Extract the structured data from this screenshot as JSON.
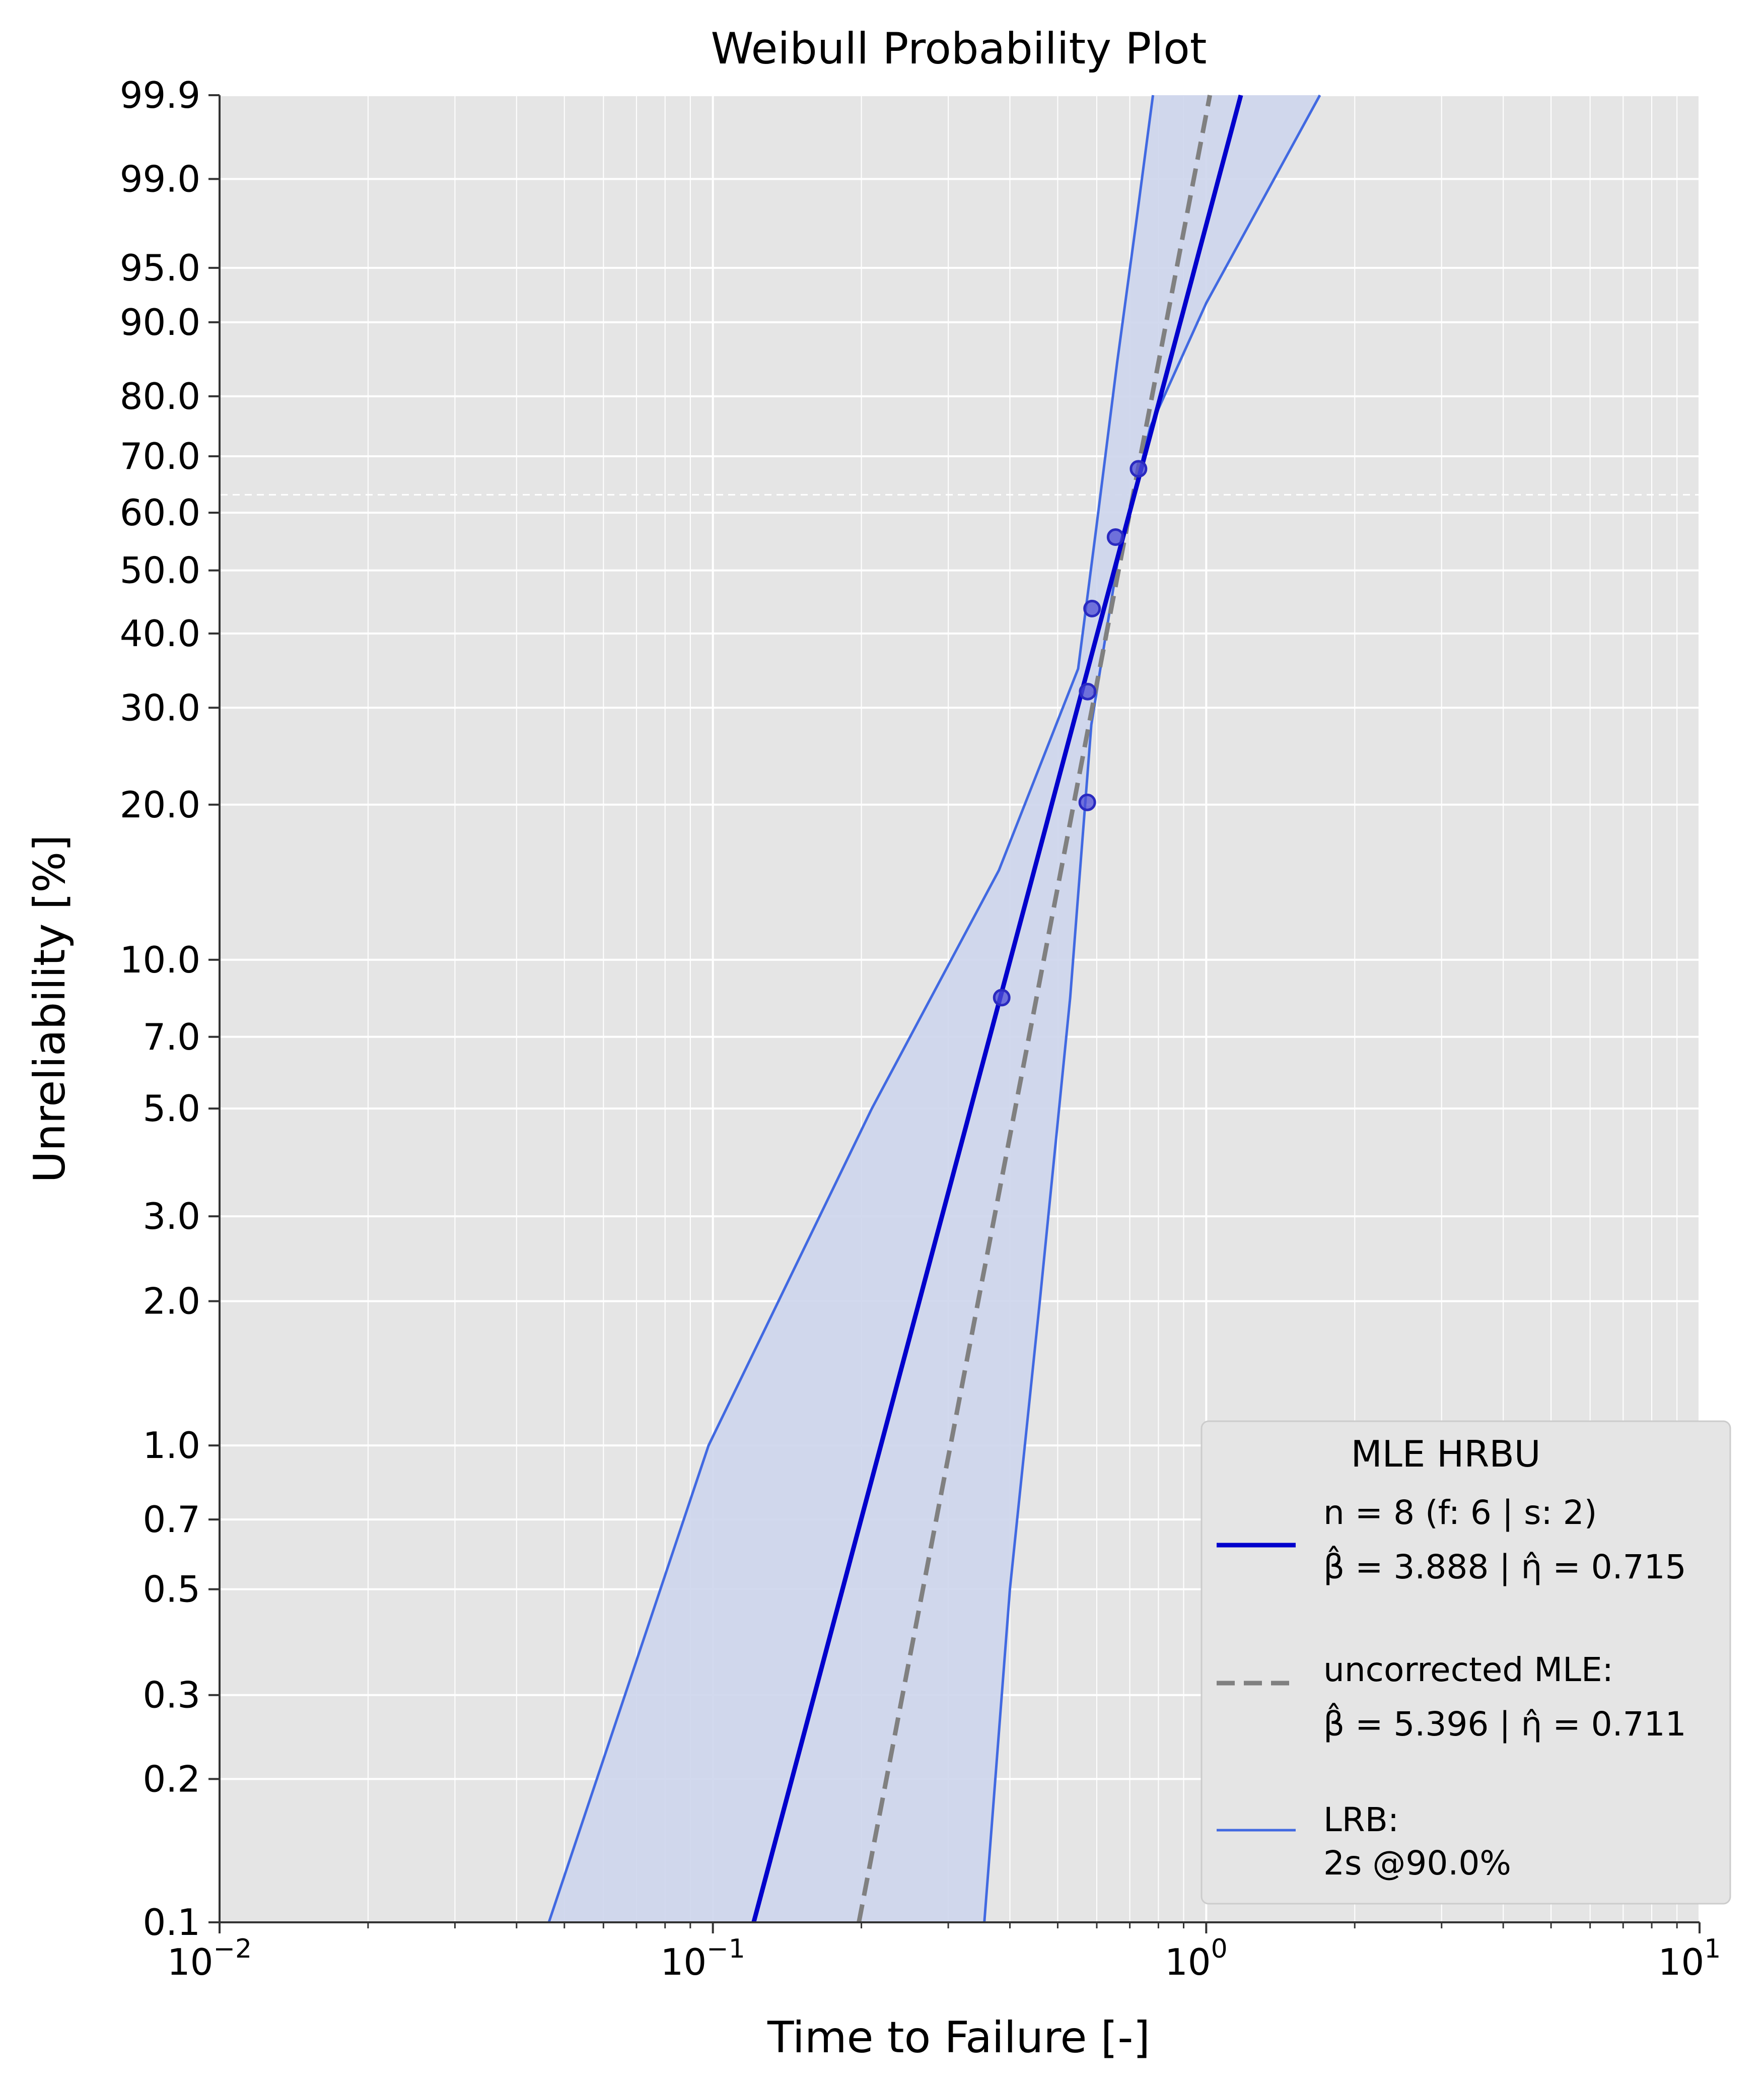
{
  "chart_data": {
    "type": "scatter",
    "title": "Weibull Probability Plot",
    "xlabel": "Time to Failure [-]",
    "ylabel": "Unreliability [%]",
    "x_scale": "log",
    "y_scale": "weibull",
    "xlim": [
      0.01,
      10
    ],
    "ylim": [
      0.1,
      99.9
    ],
    "grid": true,
    "x_major_ticks": [
      {
        "value": 0.01,
        "base": "10",
        "exp": "−2"
      },
      {
        "value": 0.1,
        "base": "10",
        "exp": "−1"
      },
      {
        "value": 1,
        "base": "10",
        "exp": "0"
      },
      {
        "value": 10,
        "base": "10",
        "exp": "1"
      }
    ],
    "y_ticks": [
      {
        "value": 0.1,
        "label": "0.1"
      },
      {
        "value": 0.2,
        "label": "0.2"
      },
      {
        "value": 0.3,
        "label": "0.3"
      },
      {
        "value": 0.5,
        "label": "0.5"
      },
      {
        "value": 0.7,
        "label": "0.7"
      },
      {
        "value": 1.0,
        "label": "1.0"
      },
      {
        "value": 2.0,
        "label": "2.0"
      },
      {
        "value": 3.0,
        "label": "3.0"
      },
      {
        "value": 5.0,
        "label": "5.0"
      },
      {
        "value": 7.0,
        "label": "7.0"
      },
      {
        "value": 10.0,
        "label": "10.0"
      },
      {
        "value": 20.0,
        "label": "20.0"
      },
      {
        "value": 30.0,
        "label": "30.0"
      },
      {
        "value": 40.0,
        "label": "40.0"
      },
      {
        "value": 50.0,
        "label": "50.0"
      },
      {
        "value": 60.0,
        "label": "60.0"
      },
      {
        "value": 70.0,
        "label": "70.0"
      },
      {
        "value": 80.0,
        "label": "80.0"
      },
      {
        "value": 90.0,
        "label": "90.0"
      },
      {
        "value": 95.0,
        "label": "95.0"
      },
      {
        "value": 99.0,
        "label": "99.0"
      },
      {
        "value": 99.9,
        "label": "99.9"
      }
    ],
    "reference_line_y": 63.2,
    "points": [
      {
        "x": 0.385,
        "y": 8.4
      },
      {
        "x": 0.574,
        "y": 20.2
      },
      {
        "x": 0.575,
        "y": 32.0
      },
      {
        "x": 0.587,
        "y": 43.8
      },
      {
        "x": 0.655,
        "y": 55.7
      },
      {
        "x": 0.729,
        "y": 67.8
      }
    ],
    "series": [
      {
        "name": "MLE HRBU",
        "beta": 3.888,
        "eta": 0.715,
        "color": "#0000cc"
      },
      {
        "name": "uncorrected MLE",
        "beta": 5.396,
        "eta": 0.711,
        "color": "#808080"
      }
    ],
    "confidence_bounds": {
      "color": "#4169e1",
      "fill": "#cdd5ec",
      "lower": [
        {
          "x": 0.355,
          "y": 0.1
        },
        {
          "x": 0.4,
          "y": 0.5
        },
        {
          "x": 0.46,
          "y": 2.0
        },
        {
          "x": 0.53,
          "y": 8.4
        },
        {
          "x": 0.585,
          "y": 28.0
        },
        {
          "x": 0.66,
          "y": 51.0
        },
        {
          "x": 0.77,
          "y": 75.0
        },
        {
          "x": 1.0,
          "y": 92.0
        },
        {
          "x": 1.7,
          "y": 99.9
        }
      ],
      "upper": [
        {
          "x": 0.0465,
          "y": 0.1
        },
        {
          "x": 0.098,
          "y": 1.0
        },
        {
          "x": 0.21,
          "y": 5.0
        },
        {
          "x": 0.38,
          "y": 15.0
        },
        {
          "x": 0.55,
          "y": 35.0
        },
        {
          "x": 0.6,
          "y": 58.0
        },
        {
          "x": 0.66,
          "y": 85.0
        },
        {
          "x": 0.72,
          "y": 97.5
        },
        {
          "x": 0.78,
          "y": 99.9
        }
      ]
    },
    "legend": {
      "position": "lower-right",
      "title": "MLE HRBU",
      "entry1_line1": "n = 8 (f: 6 | s: 2)",
      "entry1_line2": "β̂ = 3.888 | η̂ = 0.715",
      "entry2_line1": "uncorrected MLE:",
      "entry2_line2": "β̂ = 5.396 | η̂ = 0.711",
      "entry3_line1": "LRB:",
      "entry3_line2": "2s @90.0%"
    }
  }
}
